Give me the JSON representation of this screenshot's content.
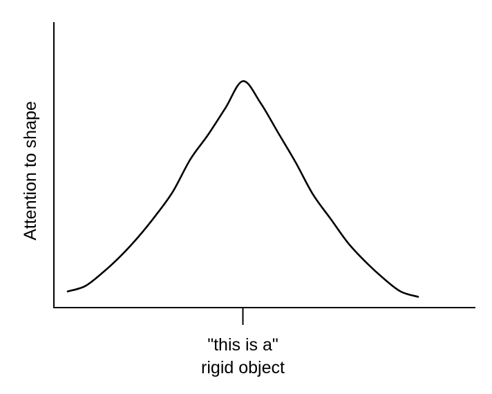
{
  "chart_data": {
    "type": "line",
    "title": "",
    "ylabel": "Attention to shape",
    "xlabel": "",
    "x_ticks": [
      {
        "x": 0,
        "label_lines": [
          "\"this is a\"",
          "rigid object"
        ]
      }
    ],
    "y_ticks": [],
    "xlim": [
      -10,
      10
    ],
    "ylim": [
      0,
      1
    ],
    "grid": false,
    "legend": "none",
    "series": [
      {
        "x": [
          -10,
          -9,
          -8,
          -7,
          -6,
          -5,
          -4,
          -3,
          -2,
          -1,
          0,
          1,
          2,
          3,
          4,
          5,
          6,
          7,
          8,
          9,
          10
        ],
        "y": [
          0.06,
          0.08,
          0.13,
          0.19,
          0.26,
          0.34,
          0.43,
          0.55,
          0.64,
          0.74,
          0.84,
          0.76,
          0.65,
          0.54,
          0.42,
          0.33,
          0.24,
          0.17,
          0.11,
          0.06,
          0.04
        ]
      }
    ]
  }
}
